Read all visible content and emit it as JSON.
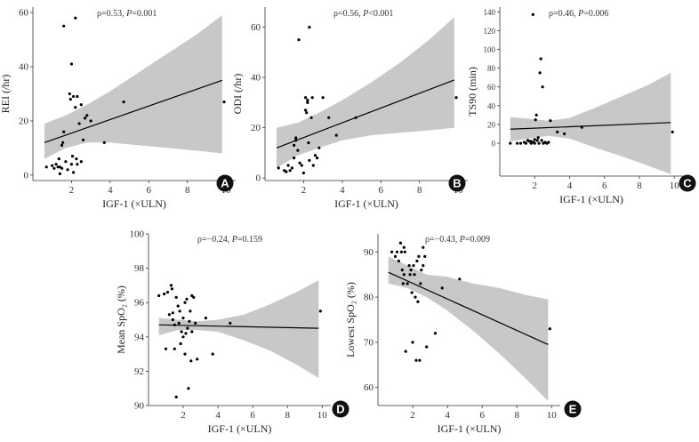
{
  "chart_data": [
    {
      "panel": "A",
      "type": "scatter",
      "xlabel": "IGF-1 (×ULN)",
      "ylabel": "REI (/hr)",
      "annotation": {
        "rho": "ρ=0.53, ",
        "p": "P",
        "rest": "=0.001"
      },
      "xlim": [
        0,
        10.5
      ],
      "ylim": [
        -2,
        62
      ],
      "xticks": [
        2,
        4,
        6,
        8,
        10
      ],
      "yticks": [
        0,
        20,
        40,
        60
      ],
      "fit": {
        "x1": 0.6,
        "y1": 12,
        "x2": 9.8,
        "y2": 35
      },
      "band": [
        [
          0.6,
          19,
          6
        ],
        [
          1.7,
          22,
          10
        ],
        [
          2.8,
          26,
          12
        ],
        [
          4.0,
          31,
          12
        ],
        [
          5.5,
          38,
          11
        ],
        [
          7.0,
          45,
          10
        ],
        [
          8.5,
          52,
          9
        ],
        [
          9.8,
          59,
          8
        ]
      ],
      "points": [
        [
          0.7,
          3
        ],
        [
          1.0,
          3.5
        ],
        [
          1.1,
          2.5
        ],
        [
          1.2,
          4
        ],
        [
          1.3,
          3
        ],
        [
          1.35,
          6
        ],
        [
          1.4,
          3
        ],
        [
          1.4,
          0.5
        ],
        [
          1.5,
          2.5
        ],
        [
          1.5,
          11
        ],
        [
          1.55,
          12
        ],
        [
          1.6,
          16
        ],
        [
          1.6,
          55
        ],
        [
          1.7,
          5
        ],
        [
          1.8,
          2
        ],
        [
          1.9,
          30
        ],
        [
          1.95,
          28
        ],
        [
          2.0,
          41
        ],
        [
          2.0,
          4
        ],
        [
          2.05,
          7
        ],
        [
          2.1,
          1
        ],
        [
          2.1,
          29
        ],
        [
          2.2,
          58
        ],
        [
          2.2,
          25
        ],
        [
          2.25,
          6
        ],
        [
          2.3,
          29
        ],
        [
          2.3,
          4
        ],
        [
          2.4,
          19
        ],
        [
          2.5,
          26
        ],
        [
          2.5,
          5
        ],
        [
          2.6,
          13
        ],
        [
          2.7,
          21
        ],
        [
          2.8,
          22
        ],
        [
          3.0,
          20
        ],
        [
          3.7,
          12
        ],
        [
          4.7,
          27
        ],
        [
          9.9,
          27
        ]
      ]
    },
    {
      "panel": "B",
      "type": "scatter",
      "xlabel": "IGF-1 (×ULN)",
      "ylabel": "ODI (/hr)",
      "annotation": {
        "rho": "ρ=0.56, ",
        "p": "P",
        "rest": "<0.001"
      },
      "xlim": [
        0,
        10.5
      ],
      "ylim": [
        -1,
        68
      ],
      "xticks": [
        2,
        4,
        6,
        8,
        10
      ],
      "yticks": [
        0,
        20,
        40,
        60
      ],
      "fit": {
        "x1": 0.6,
        "y1": 12,
        "x2": 9.8,
        "y2": 39
      },
      "band": [
        [
          0.6,
          20,
          4
        ],
        [
          1.7,
          22,
          9
        ],
        [
          2.8,
          26,
          12
        ],
        [
          4.0,
          31,
          15
        ],
        [
          5.5,
          38,
          17
        ],
        [
          7.0,
          46,
          18
        ],
        [
          8.5,
          55,
          19
        ],
        [
          9.8,
          64,
          20
        ]
      ],
      "points": [
        [
          0.7,
          4
        ],
        [
          1.0,
          3
        ],
        [
          1.1,
          2.5
        ],
        [
          1.2,
          5
        ],
        [
          1.3,
          3
        ],
        [
          1.4,
          4
        ],
        [
          1.5,
          8
        ],
        [
          1.5,
          13
        ],
        [
          1.6,
          16
        ],
        [
          1.6,
          15
        ],
        [
          1.7,
          11
        ],
        [
          1.75,
          55
        ],
        [
          1.8,
          6
        ],
        [
          1.9,
          5
        ],
        [
          2.0,
          2
        ],
        [
          2.1,
          32
        ],
        [
          2.1,
          27
        ],
        [
          2.15,
          26
        ],
        [
          2.2,
          31
        ],
        [
          2.2,
          30
        ],
        [
          2.25,
          14
        ],
        [
          2.3,
          60
        ],
        [
          2.3,
          7
        ],
        [
          2.4,
          24
        ],
        [
          2.45,
          32
        ],
        [
          2.5,
          5
        ],
        [
          2.6,
          9
        ],
        [
          2.7,
          8
        ],
        [
          2.8,
          12
        ],
        [
          3.0,
          32
        ],
        [
          3.3,
          24
        ],
        [
          3.7,
          17
        ],
        [
          4.7,
          24
        ],
        [
          9.9,
          32
        ]
      ]
    },
    {
      "panel": "C",
      "type": "scatter",
      "xlabel": "IGF-1 (×ULN)",
      "ylabel": "TS90 (min)",
      "annotation": {
        "rho": "ρ=0.46, ",
        "p": "P",
        "rest": "=0.006"
      },
      "xlim": [
        0,
        10.5
      ],
      "ylim": [
        -35,
        145
      ],
      "xticks": [
        2,
        4,
        6,
        8,
        10
      ],
      "yticks": [
        0,
        20,
        40,
        60,
        80,
        100,
        120,
        140
      ],
      "fit": {
        "x1": 0.6,
        "y1": 15,
        "x2": 9.8,
        "y2": 22
      },
      "band": [
        [
          0.6,
          28,
          2
        ],
        [
          1.7,
          26,
          5
        ],
        [
          2.8,
          24,
          8
        ],
        [
          4.0,
          27,
          5
        ],
        [
          5.5,
          38,
          -5
        ],
        [
          7.0,
          50,
          -14
        ],
        [
          8.5,
          62,
          -24
        ],
        [
          9.8,
          75,
          -33
        ]
      ],
      "points": [
        [
          0.6,
          0
        ],
        [
          1.0,
          0
        ],
        [
          1.2,
          0
        ],
        [
          1.4,
          1
        ],
        [
          1.5,
          0
        ],
        [
          1.6,
          3
        ],
        [
          1.7,
          2
        ],
        [
          1.8,
          0
        ],
        [
          1.8,
          2
        ],
        [
          1.9,
          137
        ],
        [
          1.95,
          1
        ],
        [
          2.0,
          4
        ],
        [
          2.0,
          0
        ],
        [
          2.05,
          25
        ],
        [
          2.1,
          30
        ],
        [
          2.15,
          3
        ],
        [
          2.2,
          6
        ],
        [
          2.25,
          0
        ],
        [
          2.3,
          75
        ],
        [
          2.35,
          90
        ],
        [
          2.4,
          3
        ],
        [
          2.45,
          60
        ],
        [
          2.5,
          0
        ],
        [
          2.6,
          1
        ],
        [
          2.7,
          0
        ],
        [
          2.8,
          1
        ],
        [
          2.9,
          24
        ],
        [
          3.3,
          12
        ],
        [
          3.7,
          10
        ],
        [
          4.7,
          17
        ],
        [
          9.9,
          12
        ]
      ]
    },
    {
      "panel": "D",
      "type": "scatter",
      "xlabel": "IGF-1 (×ULN)",
      "ylabel": "Mean SpO₂ (%)",
      "annotation": {
        "rho": "ρ=−0.24, ",
        "p": "P",
        "rest": "=0.159"
      },
      "xlim": [
        0,
        10.5
      ],
      "ylim": [
        90,
        100
      ],
      "xticks": [
        2,
        4,
        6,
        8,
        10
      ],
      "yticks": [
        90,
        92,
        94,
        96,
        98,
        100
      ],
      "fit": {
        "x1": 0.6,
        "y1": 94.7,
        "x2": 9.8,
        "y2": 94.5
      },
      "band": [
        [
          0.6,
          95.1,
          94.1
        ],
        [
          1.7,
          95.0,
          94.4
        ],
        [
          2.8,
          94.9,
          94.4
        ],
        [
          4.0,
          95.0,
          94.3
        ],
        [
          5.5,
          95.3,
          93.8
        ],
        [
          7.0,
          95.9,
          93.2
        ],
        [
          8.5,
          96.6,
          92.4
        ],
        [
          9.8,
          97.3,
          91.6
        ]
      ],
      "points": [
        [
          0.6,
          96.4
        ],
        [
          0.9,
          96.5
        ],
        [
          1.0,
          93.3
        ],
        [
          1.1,
          96.6
        ],
        [
          1.2,
          95.3
        ],
        [
          1.3,
          97.0
        ],
        [
          1.35,
          96.8
        ],
        [
          1.4,
          95.4
        ],
        [
          1.4,
          95.0
        ],
        [
          1.5,
          93.3
        ],
        [
          1.5,
          94.7
        ],
        [
          1.6,
          96.3
        ],
        [
          1.6,
          90.5
        ],
        [
          1.7,
          95.8
        ],
        [
          1.75,
          94.8
        ],
        [
          1.8,
          95.5
        ],
        [
          1.85,
          93.6
        ],
        [
          1.9,
          94.3
        ],
        [
          2.0,
          94.0
        ],
        [
          2.0,
          95.1
        ],
        [
          2.1,
          93.0
        ],
        [
          2.1,
          96.0
        ],
        [
          2.15,
          94.2
        ],
        [
          2.2,
          96.2
        ],
        [
          2.25,
          94.5
        ],
        [
          2.3,
          91.0
        ],
        [
          2.35,
          94.9
        ],
        [
          2.4,
          95.5
        ],
        [
          2.45,
          92.6
        ],
        [
          2.5,
          96.4
        ],
        [
          2.5,
          94.3
        ],
        [
          2.6,
          96.3
        ],
        [
          2.7,
          94.8
        ],
        [
          2.8,
          92.7
        ],
        [
          3.3,
          95.1
        ],
        [
          3.7,
          93.0
        ],
        [
          4.7,
          94.8
        ],
        [
          9.9,
          95.5
        ]
      ]
    },
    {
      "panel": "E",
      "type": "scatter",
      "xlabel": "IGF-1 (×ULN)",
      "ylabel": "Lowest SpO₂ (%)",
      "annotation": {
        "rho": "ρ=−0.43, ",
        "p": "P",
        "rest": "=0.009"
      },
      "xlim": [
        0,
        10.5
      ],
      "ylim": [
        56,
        94
      ],
      "xticks": [
        2,
        4,
        6,
        8,
        10
      ],
      "yticks": [
        60,
        70,
        80,
        90
      ],
      "fit": {
        "x1": 0.6,
        "y1": 85.5,
        "x2": 9.8,
        "y2": 69.5
      },
      "band": [
        [
          0.6,
          89,
          83
        ],
        [
          1.7,
          87,
          82
        ],
        [
          2.8,
          85,
          80
        ],
        [
          4.0,
          84.5,
          77
        ],
        [
          5.5,
          83,
          72.5
        ],
        [
          7.0,
          82,
          67.5
        ],
        [
          8.5,
          80.5,
          62
        ],
        [
          9.8,
          79.5,
          57
        ]
      ],
      "points": [
        [
          0.8,
          90
        ],
        [
          1.0,
          89
        ],
        [
          1.1,
          90
        ],
        [
          1.2,
          88
        ],
        [
          1.3,
          92
        ],
        [
          1.35,
          90
        ],
        [
          1.4,
          86
        ],
        [
          1.45,
          83
        ],
        [
          1.5,
          85
        ],
        [
          1.5,
          91
        ],
        [
          1.55,
          90
        ],
        [
          1.6,
          68
        ],
        [
          1.7,
          83
        ],
        [
          1.8,
          87
        ],
        [
          1.85,
          85
        ],
        [
          1.9,
          86
        ],
        [
          1.95,
          81
        ],
        [
          2.0,
          70
        ],
        [
          2.05,
          87
        ],
        [
          2.1,
          85
        ],
        [
          2.15,
          80
        ],
        [
          2.2,
          66
        ],
        [
          2.25,
          88
        ],
        [
          2.3,
          79
        ],
        [
          2.35,
          89
        ],
        [
          2.4,
          66
        ],
        [
          2.45,
          83
        ],
        [
          2.5,
          86
        ],
        [
          2.6,
          87
        ],
        [
          2.6,
          91
        ],
        [
          2.7,
          89
        ],
        [
          2.8,
          69
        ],
        [
          3.3,
          72
        ],
        [
          3.7,
          82
        ],
        [
          4.7,
          84
        ],
        [
          9.9,
          73
        ]
      ]
    }
  ],
  "colors": {
    "band": "#c8c8c8",
    "marker": "#000000",
    "line": "#000000",
    "badge": "#111111",
    "axis": "#333333"
  },
  "icons": {
    "panel_badge": "filled-circle-letter"
  }
}
